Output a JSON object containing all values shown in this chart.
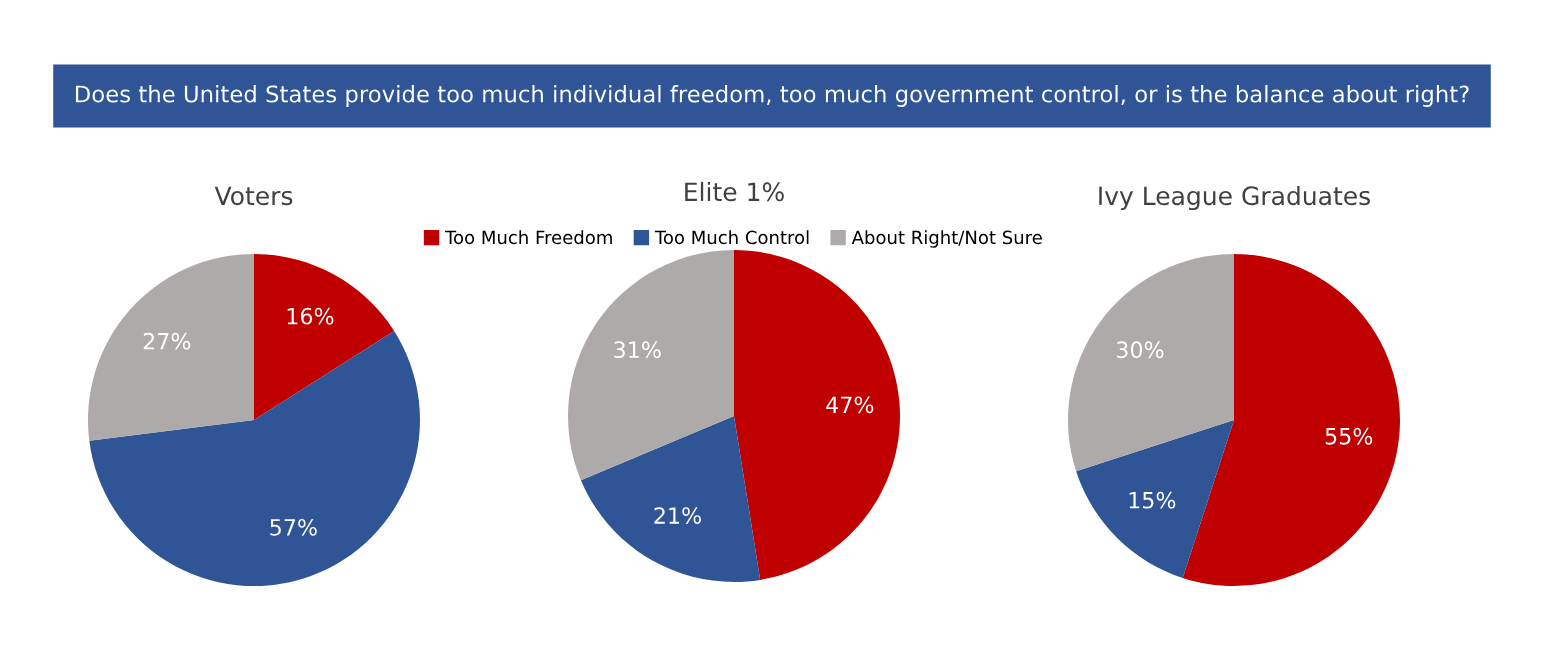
{
  "chart_data": [
    {
      "type": "pie",
      "title": "Voters",
      "annotations": [
        "Does the United States provide too much individual freedom, too much government control, or is the balance about right?"
      ],
      "categories": [
        null,
        null,
        null
      ],
      "values": [
        16,
        57,
        27
      ],
      "colors": [
        "#c00000",
        "#2f5597",
        "#aeaaaa"
      ],
      "value_labels": [
        "16%",
        "57%",
        "27%"
      ],
      "legend": false
    },
    {
      "type": "pie",
      "title": "Elite 1%",
      "categories": [
        "Too Much Freedom",
        "Too Much Control",
        "About Right/Not Sure"
      ],
      "values": [
        47,
        21,
        31
      ],
      "colors": [
        "#c00000",
        "#2f5597",
        "#aeaaaa"
      ],
      "value_labels": [
        "47%",
        "21%",
        "31%"
      ],
      "legend": "top"
    },
    {
      "type": "pie",
      "title": "Ivy League Graduates",
      "categories": [
        null,
        null,
        null
      ],
      "values": [
        55,
        15,
        30
      ],
      "colors": [
        "#c00000",
        "#2f5597",
        "#aeaaaa"
      ],
      "value_labels": [
        "55%",
        "15%",
        "30%"
      ],
      "legend": false
    }
  ]
}
